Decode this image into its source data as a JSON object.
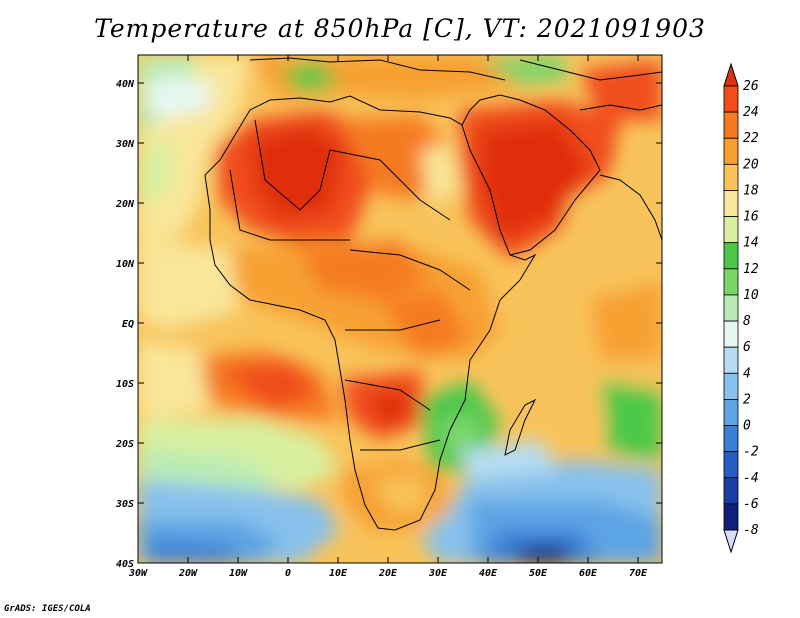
{
  "title": "Temperature at 850hPa [C], VT: 2021091903",
  "credit": "GrADS: IGES/COLA",
  "lon_ticks": [
    "30W",
    "20W",
    "10W",
    "0",
    "10E",
    "20E",
    "30E",
    "40E",
    "50E",
    "60E",
    "70E"
  ],
  "lat_ticks": [
    "40N",
    "30N",
    "20N",
    "10N",
    "EQ",
    "10S",
    "20S",
    "30S",
    "40S"
  ],
  "colorbar": {
    "labels": [
      "26",
      "24",
      "22",
      "20",
      "18",
      "16",
      "14",
      "12",
      "10",
      "8",
      "6",
      "4",
      "2",
      "0",
      "-2",
      "-4",
      "-6",
      "-8"
    ],
    "colors": [
      "#e02f10",
      "#f04d1a",
      "#f57a22",
      "#f7a030",
      "#f8c35a",
      "#f9e69a",
      "#d8f0a0",
      "#4bc84a",
      "#7bd66a",
      "#b9ebb4",
      "#e6f7f2",
      "#b6dcf2",
      "#88c1ec",
      "#5da4e4",
      "#3a7fd6",
      "#275cc4",
      "#1a3ea8",
      "#10207a"
    ]
  }
}
